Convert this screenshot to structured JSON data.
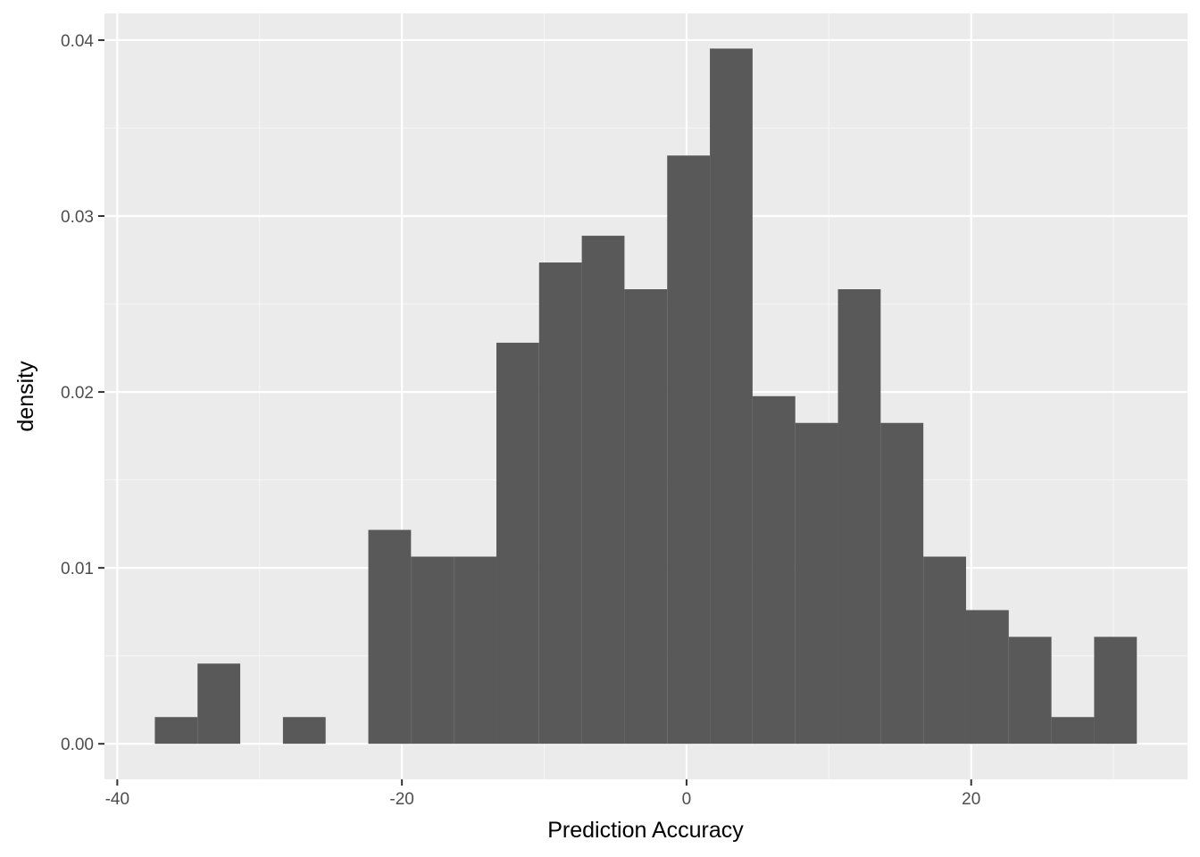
{
  "chart_data": {
    "type": "bar",
    "subtype": "histogram",
    "title": "",
    "xlabel": "Prediction Accuracy",
    "ylabel": "density",
    "xlim": [
      -40.9,
      35.2
    ],
    "ylim": [
      -0.00202,
      0.04152
    ],
    "xticks": [
      -40,
      -20,
      0,
      20
    ],
    "xtick_labels": [
      "-40",
      "-20",
      "0",
      "20"
    ],
    "yticks": [
      0.0,
      0.01,
      0.02,
      0.03,
      0.04
    ],
    "ytick_labels": [
      "0.00",
      "0.01",
      "0.02",
      "0.03",
      "0.04"
    ],
    "bin_width": 3.0,
    "bin_edges": [
      -37.36,
      -34.36,
      -31.36,
      -28.36,
      -25.36,
      -22.36,
      -19.36,
      -16.36,
      -13.36,
      -10.36,
      -7.36,
      -4.36,
      -1.36,
      1.64,
      4.64,
      7.64,
      10.64,
      13.64,
      16.64,
      19.64,
      22.64,
      25.64,
      28.64,
      31.64
    ],
    "values": [
      0.00152,
      0.00456,
      0.0,
      0.00152,
      0.0,
      0.01216,
      0.01064,
      0.01064,
      0.0228,
      0.02736,
      0.02888,
      0.02584,
      0.03344,
      0.03952,
      0.01976,
      0.01824,
      0.02584,
      0.01824,
      0.01064,
      0.0076,
      0.00608,
      0.00152,
      0.00608
    ],
    "grid": true,
    "legend": "none",
    "colors": {
      "bar_fill": "#595959",
      "panel_background": "#ebebeb",
      "grid_major": "#ffffff",
      "grid_minor": "#f5f5f5",
      "tick_color": "#333333",
      "tick_label_color": "#4d4d4d"
    }
  }
}
